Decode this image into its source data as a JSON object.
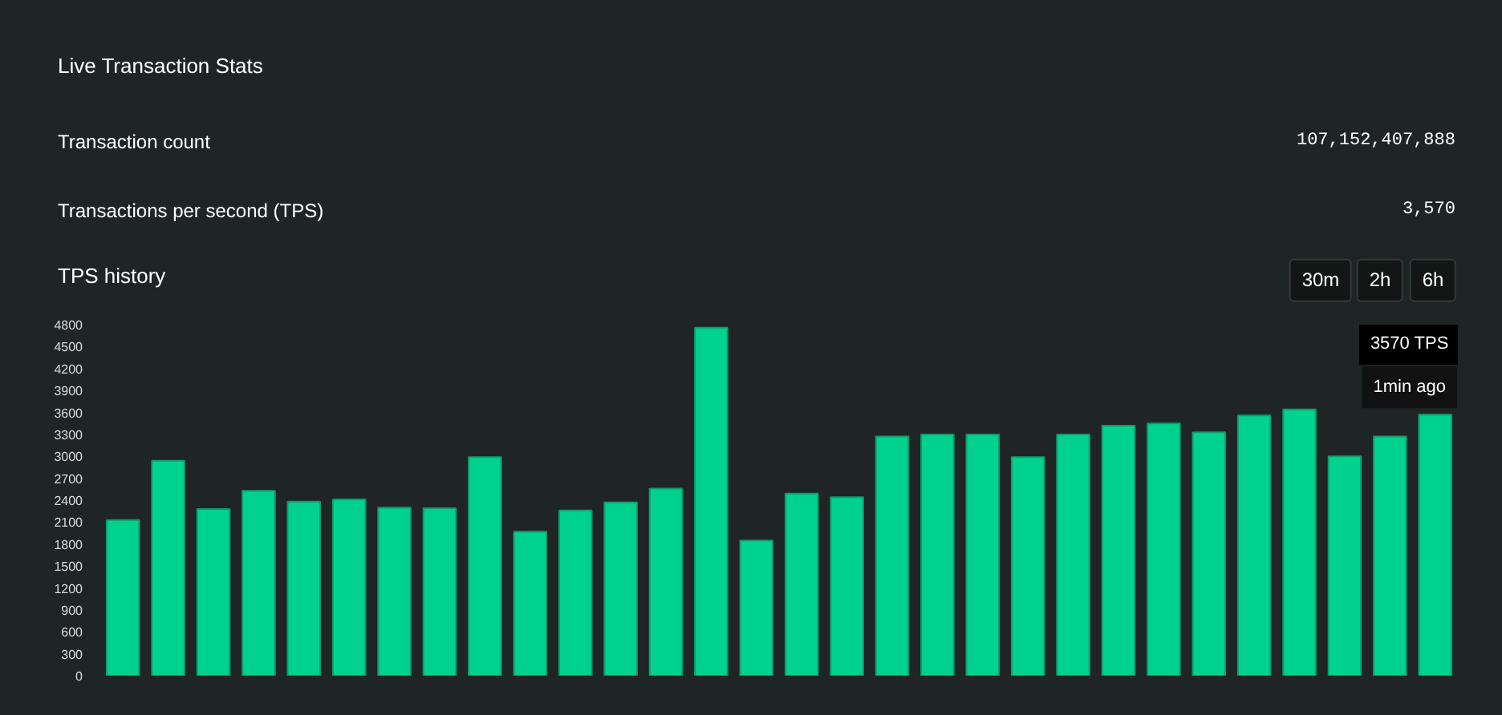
{
  "chart_data": {
    "type": "bar",
    "title": "Live Transaction Stats",
    "categories": [
      null,
      null,
      null,
      null,
      null,
      null,
      null,
      null,
      null,
      null,
      null,
      null,
      null,
      null,
      null,
      null,
      null,
      null,
      null,
      null,
      null,
      null,
      null,
      null,
      null,
      null,
      null,
      null,
      null,
      null
    ],
    "values": [
      2130,
      2940,
      2280,
      2530,
      2380,
      2410,
      2300,
      2290,
      2990,
      1970,
      2260,
      2370,
      2560,
      4760,
      1850,
      2490,
      2440,
      3270,
      3300,
      3300,
      2990,
      3300,
      3420,
      3450,
      3330,
      3560,
      3640,
      3000,
      3270,
      3570
    ],
    "color": "#00d18f",
    "ylim": [
      0,
      4800
    ],
    "yticks": [
      0,
      300,
      600,
      900,
      1200,
      1500,
      1800,
      2100,
      2400,
      2700,
      3000,
      3300,
      3600,
      3900,
      4200,
      4500,
      4800
    ],
    "grid": false,
    "tick_labels": "y",
    "annotations": [
      "Transaction count",
      "107,152,407,888",
      "Transactions per second (TPS)",
      "3,570",
      "TPS history",
      "30m",
      "2h",
      "6h",
      "3570 TPS",
      "1min ago"
    ]
  }
}
